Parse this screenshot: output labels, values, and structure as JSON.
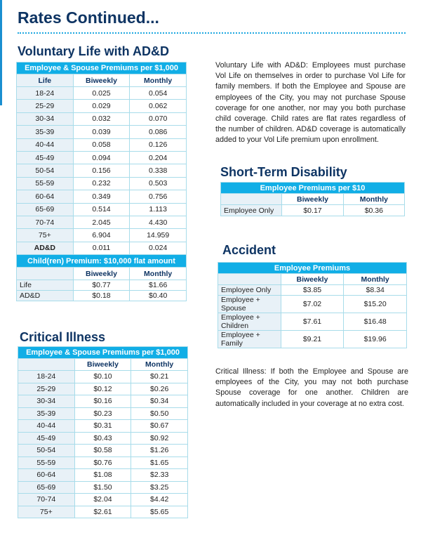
{
  "page_title": "Rates Continued...",
  "vol_life": {
    "heading": "Voluntary Life with AD&D",
    "table_title": "Employee & Spouse Premiums per $1,000",
    "columns": [
      "Life",
      "Biweekly",
      "Monthly"
    ],
    "rows": [
      [
        "18-24",
        "0.025",
        "0.054"
      ],
      [
        "25-29",
        "0.029",
        "0.062"
      ],
      [
        "30-34",
        "0.032",
        "0.070"
      ],
      [
        "35-39",
        "0.039",
        "0.086"
      ],
      [
        "40-44",
        "0.058",
        "0.126"
      ],
      [
        "45-49",
        "0.094",
        "0.204"
      ],
      [
        "50-54",
        "0.156",
        "0.338"
      ],
      [
        "55-59",
        "0.232",
        "0.503"
      ],
      [
        "60-64",
        "0.349",
        "0.756"
      ],
      [
        "65-69",
        "0.514",
        "1.113"
      ],
      [
        "70-74",
        "2.045",
        "4.430"
      ],
      [
        "75+",
        "6.904",
        "14.959"
      ],
      [
        "AD&D",
        "0.011",
        "0.024"
      ]
    ],
    "child_title": "Child(ren) Premium:  $10,000 flat amount",
    "child_columns": [
      "",
      "Biweekly",
      "Monthly"
    ],
    "child_rows": [
      [
        "Life",
        "$0.77",
        "$1.66"
      ],
      [
        "AD&D",
        "$0.18",
        "$0.40"
      ]
    ],
    "description": "Voluntary Life with AD&D:  Employees must purchase Vol Life on themselves in order to purchase Vol Life for family members. If both the Employee and Spouse are employees of the City, you may not purchase Spouse coverage for one another, nor may you both purchase child coverage. Child rates are flat rates regardless of the number of children. AD&D coverage is automatically added to your Vol Life premium upon enrollment."
  },
  "std": {
    "heading": "Short-Term Disability",
    "table_title": "Employee Premiums per $10",
    "columns": [
      "",
      "Biweekly",
      "Monthly"
    ],
    "rows": [
      [
        "Employee Only",
        "$0.17",
        "$0.36"
      ]
    ]
  },
  "accident": {
    "heading": "Accident",
    "table_title": "Employee Premiums",
    "columns": [
      "",
      "Biweekly",
      "Monthly"
    ],
    "rows": [
      [
        "Employee Only",
        "$3.85",
        "$8.34"
      ],
      [
        "Employee + Spouse",
        "$7.02",
        "$15.20"
      ],
      [
        "Employee + Children",
        "$7.61",
        "$16.48"
      ],
      [
        "Employee + Family",
        "$9.21",
        "$19.96"
      ]
    ]
  },
  "critical": {
    "heading": "Critical Illness",
    "table_title": "Employee & Spouse Premiums per $1,000",
    "columns": [
      "",
      "Biweekly",
      "Monthly"
    ],
    "rows": [
      [
        "18-24",
        "$0.10",
        "$0.21"
      ],
      [
        "25-29",
        "$0.12",
        "$0.26"
      ],
      [
        "30-34",
        "$0.16",
        "$0.34"
      ],
      [
        "35-39",
        "$0.23",
        "$0.50"
      ],
      [
        "40-44",
        "$0.31",
        "$0.67"
      ],
      [
        "45-49",
        "$0.43",
        "$0.92"
      ],
      [
        "50-54",
        "$0.58",
        "$1.26"
      ],
      [
        "55-59",
        "$0.76",
        "$1.65"
      ],
      [
        "60-64",
        "$1.08",
        "$2.33"
      ],
      [
        "65-69",
        "$1.50",
        "$3.25"
      ],
      [
        "70-74",
        "$2.04",
        "$4.42"
      ],
      [
        "75+",
        "$2.61",
        "$5.65"
      ]
    ],
    "description": "Critical Illness:  If both the Employee and Spouse are employees of the City, you may not both purchase Spouse coverage for one another. Children are automatically included in your coverage at no extra cost."
  }
}
